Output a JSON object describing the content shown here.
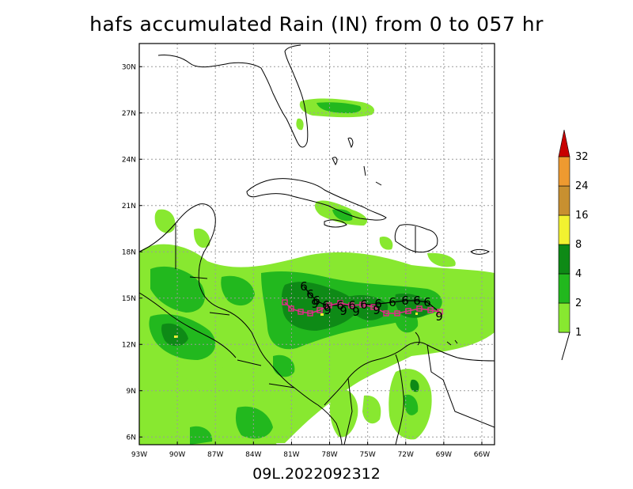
{
  "title": "hafs accumulated Rain (IN) from 0 to 057 hr",
  "footer": "09L.2022092312",
  "map": {
    "lon_range": [
      -93,
      -65
    ],
    "lat_range": [
      5.5,
      31.5
    ],
    "lon_ticks": [
      "93W",
      "90W",
      "87W",
      "84W",
      "81W",
      "78W",
      "75W",
      "72W",
      "69W",
      "66W"
    ],
    "lat_ticks": [
      "30N",
      "27N",
      "24N",
      "21N",
      "18N",
      "15N",
      "12N",
      "9N",
      "6N"
    ],
    "grid": true
  },
  "colorbar": {
    "levels": [
      "1",
      "2",
      "4",
      "8",
      "16",
      "24",
      "32"
    ],
    "colors": [
      "#88e830",
      "#22b81e",
      "#0e8a16",
      "#f2f230",
      "#c89030",
      "#ee9a30",
      "#c80000"
    ],
    "units": "IN"
  },
  "track": {
    "model_symbol": "6",
    "obs_symbol": "9",
    "model_color": "#000000",
    "obs_color": "#e8288c",
    "marker_shape": "square"
  }
}
